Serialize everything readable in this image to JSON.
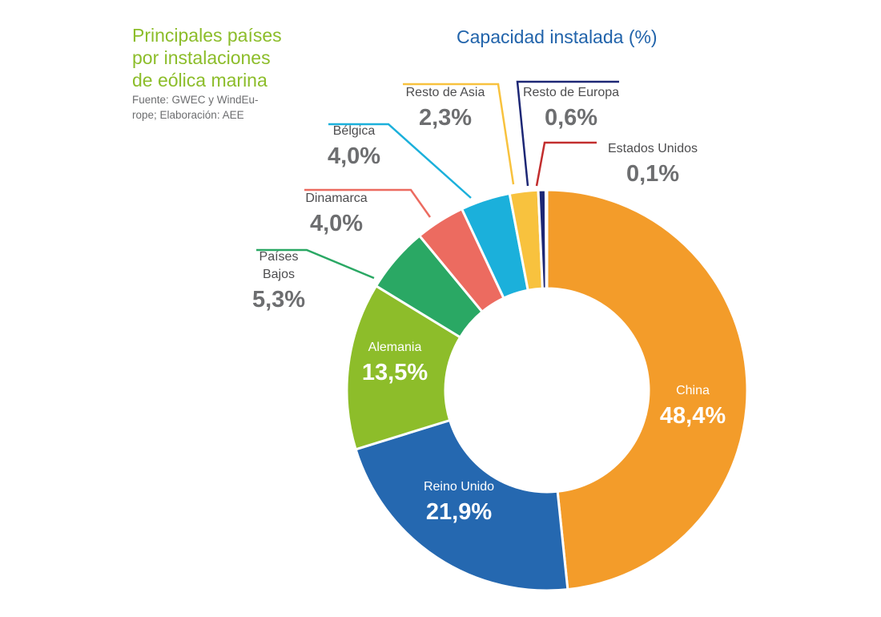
{
  "header": {
    "title_lines": [
      "Principales países",
      "por instalaciones",
      "de eólica marina"
    ],
    "source_lines": [
      "Fuente: GWEC y WindEu-",
      "rope; Elaboración: AEE"
    ],
    "subtitle": "Capacidad instalada (%)"
  },
  "chart_data": {
    "type": "pie",
    "variant": "donut",
    "title": "Capacidad instalada (%)",
    "slices": [
      {
        "label": "China",
        "value": 48.4,
        "display": "48,4%",
        "color": "#f39c2a"
      },
      {
        "label": "Reino Unido",
        "value": 21.9,
        "display": "21,9%",
        "color": "#2568b0"
      },
      {
        "label": "Alemania",
        "value": 13.5,
        "display": "13,5%",
        "color": "#8dbd2a"
      },
      {
        "label": "Países Bajos",
        "label_lines": [
          "Países",
          "Bajos"
        ],
        "value": 5.3,
        "display": "5,3%",
        "color": "#2aa864"
      },
      {
        "label": "Dinamarca",
        "value": 4.0,
        "display": "4,0%",
        "color": "#ec6b60"
      },
      {
        "label": "Bélgica",
        "value": 4.0,
        "display": "4,0%",
        "color": "#1bb0db"
      },
      {
        "label": "Resto de Asia",
        "value": 2.3,
        "display": "2,3%",
        "color": "#f8c23e"
      },
      {
        "label": "Resto de Europa",
        "value": 0.6,
        "display": "0,6%",
        "color": "#1d2775"
      },
      {
        "label": "Estados Unidos",
        "value": 0.1,
        "display": "0,1%",
        "color": "#c22e2e"
      }
    ]
  }
}
